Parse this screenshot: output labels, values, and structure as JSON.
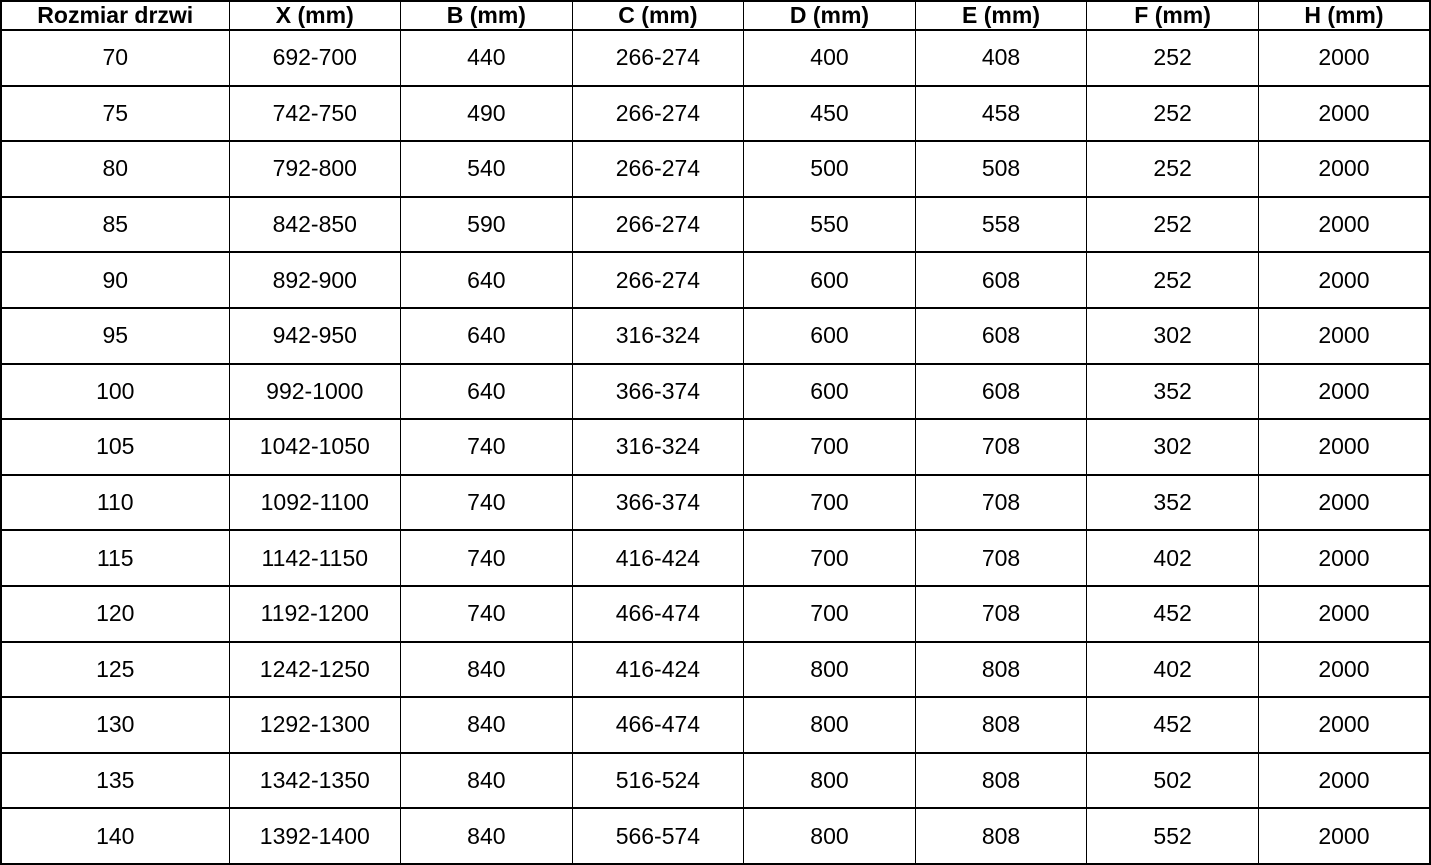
{
  "page": {
    "background_color": "#ffffff",
    "border_color": "#000000",
    "text_color": "#000000"
  },
  "table": {
    "headers": [
      "Rozmiar drzwi",
      "X (mm)",
      "B (mm)",
      "C (mm)",
      "D (mm)",
      "E (mm)",
      "F (mm)",
      "H (mm)"
    ],
    "rows": [
      [
        "70",
        "692-700",
        "440",
        "266-274",
        "400",
        "408",
        "252",
        "2000"
      ],
      [
        "75",
        "742-750",
        "490",
        "266-274",
        "450",
        "458",
        "252",
        "2000"
      ],
      [
        "80",
        "792-800",
        "540",
        "266-274",
        "500",
        "508",
        "252",
        "2000"
      ],
      [
        "85",
        "842-850",
        "590",
        "266-274",
        "550",
        "558",
        "252",
        "2000"
      ],
      [
        "90",
        "892-900",
        "640",
        "266-274",
        "600",
        "608",
        "252",
        "2000"
      ],
      [
        "95",
        "942-950",
        "640",
        "316-324",
        "600",
        "608",
        "302",
        "2000"
      ],
      [
        "100",
        "992-1000",
        "640",
        "366-374",
        "600",
        "608",
        "352",
        "2000"
      ],
      [
        "105",
        "1042-1050",
        "740",
        "316-324",
        "700",
        "708",
        "302",
        "2000"
      ],
      [
        "110",
        "1092-1100",
        "740",
        "366-374",
        "700",
        "708",
        "352",
        "2000"
      ],
      [
        "115",
        "1142-1150",
        "740",
        "416-424",
        "700",
        "708",
        "402",
        "2000"
      ],
      [
        "120",
        "1192-1200",
        "740",
        "466-474",
        "700",
        "708",
        "452",
        "2000"
      ],
      [
        "125",
        "1242-1250",
        "840",
        "416-424",
        "800",
        "808",
        "402",
        "2000"
      ],
      [
        "130",
        "1292-1300",
        "840",
        "466-474",
        "800",
        "808",
        "452",
        "2000"
      ],
      [
        "135",
        "1342-1350",
        "840",
        "516-524",
        "800",
        "808",
        "502",
        "2000"
      ],
      [
        "140",
        "1392-1400",
        "840",
        "566-574",
        "800",
        "808",
        "552",
        "2000"
      ]
    ]
  }
}
